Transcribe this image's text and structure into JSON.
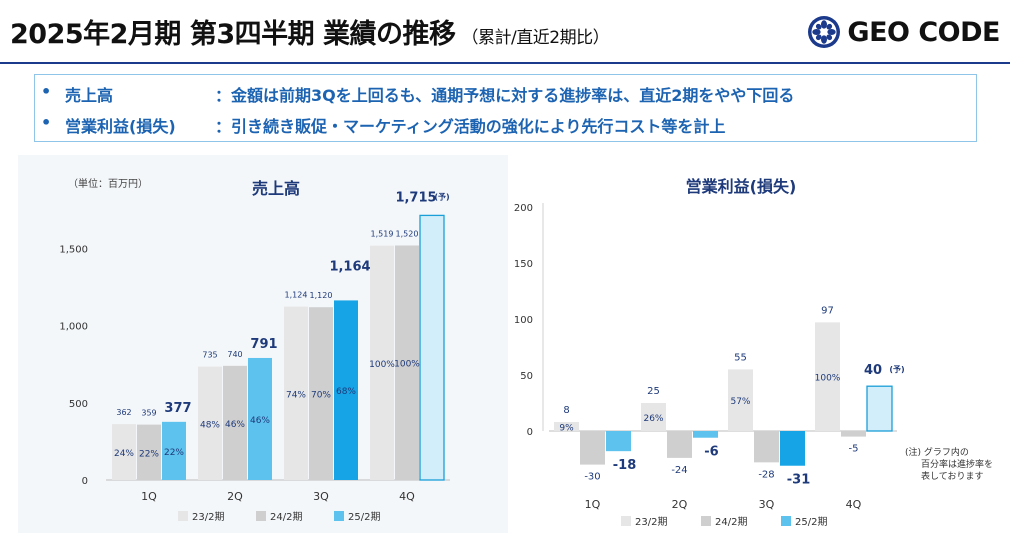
{
  "header": {
    "title": "2025年2月期 第3四半期 業績の推移",
    "subtitle": "（累計/直近2期比）",
    "logo_text": "GEO CODE"
  },
  "summary": {
    "rows": [
      {
        "bullet": "•",
        "label": "売上高",
        "text": "：金額は前期3Qを上回るも、通期予想に対する進捗率は、直近2期をやや下回る"
      },
      {
        "bullet": "•",
        "label": "営業利益(損失)",
        "text": "：引き続き販促・マーケティング活動の強化により先行コスト等を計上"
      }
    ]
  },
  "colors": {
    "s23": "#e6e6e6",
    "s24": "#cfcfcf",
    "s25": "#5ec2ee",
    "s25_emph": "#16a4e6",
    "forecast_fill": "#d2eefa",
    "forecast_stroke": "#1b9fd8",
    "accent": "#1b3a8c",
    "text_blue": "#1e3a7a"
  },
  "chart_data": [
    {
      "type": "bar",
      "title": "売上高",
      "unit_label": "（単位：百万円）",
      "categories": [
        "1Q",
        "2Q",
        "3Q",
        "4Q"
      ],
      "ylim": [
        0,
        1750
      ],
      "yticks": [
        0,
        500,
        1000,
        1500
      ],
      "ytick_labels": [
        "0",
        "500",
        "1,000",
        "1,500"
      ],
      "series": [
        {
          "name": "23/2期",
          "values": [
            362,
            735,
            1124,
            1519
          ],
          "labels": [
            "362",
            "735",
            "1,124",
            "1,519"
          ],
          "pct": [
            "24%",
            "48%",
            "74%",
            "100%"
          ]
        },
        {
          "name": "24/2期",
          "values": [
            359,
            740,
            1120,
            1520
          ],
          "labels": [
            "359",
            "740",
            "1,120",
            "1,520"
          ],
          "pct": [
            "22%",
            "46%",
            "70%",
            "100%"
          ]
        },
        {
          "name": "25/2期",
          "values": [
            377,
            791,
            1164,
            null
          ],
          "labels": [
            "377",
            "791",
            "1,164",
            ""
          ],
          "pct": [
            "22%",
            "46%",
            "68%",
            ""
          ]
        }
      ],
      "forecast": {
        "category": "4Q",
        "value": 1715,
        "label": "1,715",
        "mark": "(予)"
      },
      "legend": [
        "23/2期",
        "24/2期",
        "25/2期"
      ]
    },
    {
      "type": "bar",
      "title": "営業利益(損失)",
      "categories": [
        "1Q",
        "2Q",
        "3Q",
        "4Q"
      ],
      "ylim": [
        -40,
        200
      ],
      "yticks": [
        0,
        50,
        100,
        150,
        200
      ],
      "ytick_labels": [
        "0",
        "50",
        "100",
        "150",
        "200"
      ],
      "series": [
        {
          "name": "23/2期",
          "values": [
            8,
            25,
            55,
            97
          ],
          "labels": [
            "8",
            "25",
            "55",
            "97"
          ],
          "pct": [
            "9%",
            "26%",
            "57%",
            "100%"
          ]
        },
        {
          "name": "24/2期",
          "values": [
            -30,
            -24,
            -28,
            -5
          ],
          "labels": [
            "-30",
            "-24",
            "-28",
            "-5"
          ],
          "pct": [
            "",
            "",
            "",
            ""
          ]
        },
        {
          "name": "25/2期",
          "values": [
            -18,
            -6,
            -31,
            null
          ],
          "labels": [
            "-18",
            "-6",
            "-31",
            ""
          ],
          "pct": [
            "",
            "",
            "",
            ""
          ]
        }
      ],
      "forecast": {
        "category": "4Q",
        "value": 40,
        "label": "40",
        "mark": "(予)"
      },
      "legend": [
        "23/2期",
        "24/2期",
        "25/2期"
      ],
      "note": [
        "(注) グラフ内の",
        "百分率は進捗率を",
        "表しております"
      ]
    }
  ]
}
